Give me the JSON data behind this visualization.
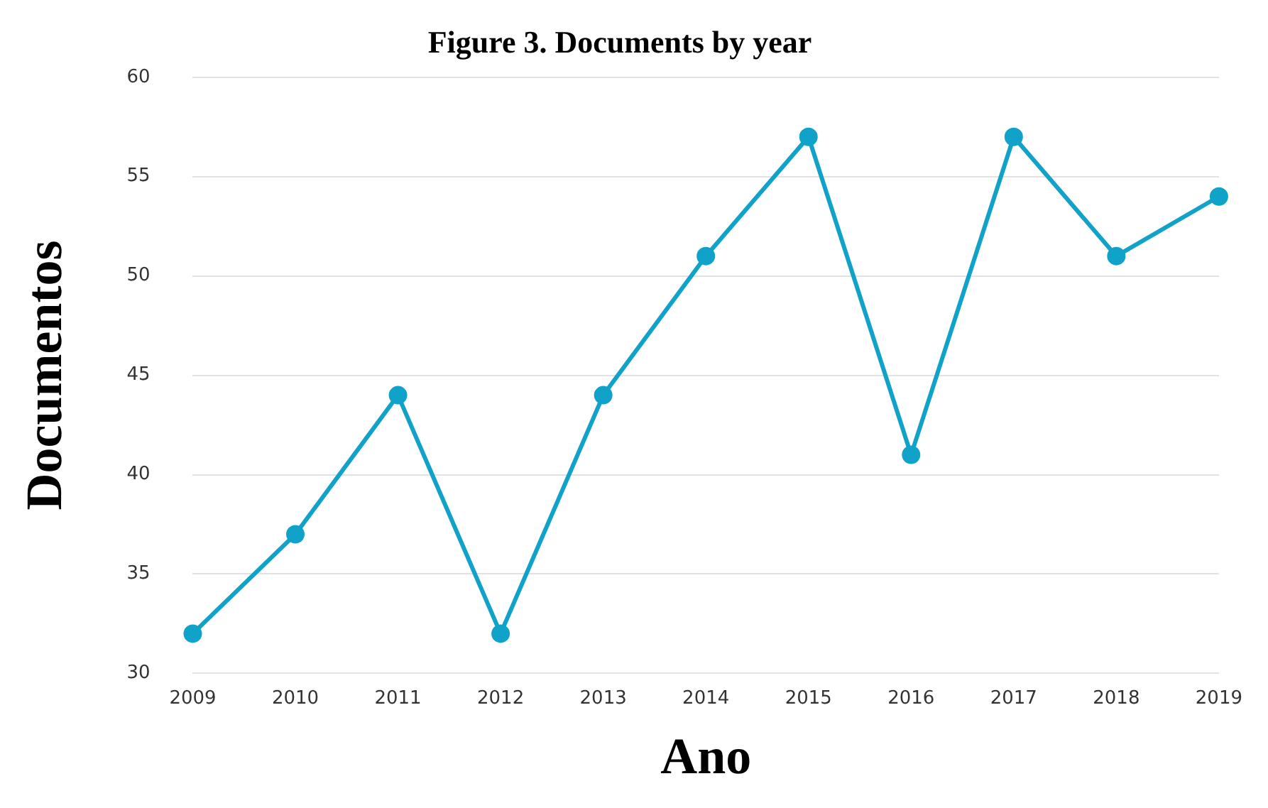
{
  "chart_data": {
    "type": "line",
    "title": "Figure 3. Documents by year",
    "xlabel": "Ano",
    "ylabel": "Documentos",
    "categories": [
      "2009",
      "2010",
      "2011",
      "2012",
      "2013",
      "2014",
      "2015",
      "2016",
      "2017",
      "2018",
      "2019"
    ],
    "series": [
      {
        "color": "#10a2c8",
        "values": [
          32,
          37,
          44,
          32,
          44,
          51,
          57,
          41,
          57,
          51,
          54
        ]
      }
    ],
    "ylim": [
      30,
      60
    ],
    "yticks": [
      30,
      35,
      40,
      45,
      50,
      55,
      60
    ],
    "grid": "y",
    "marker": "circle",
    "line_style": "solid",
    "legend": false
  }
}
